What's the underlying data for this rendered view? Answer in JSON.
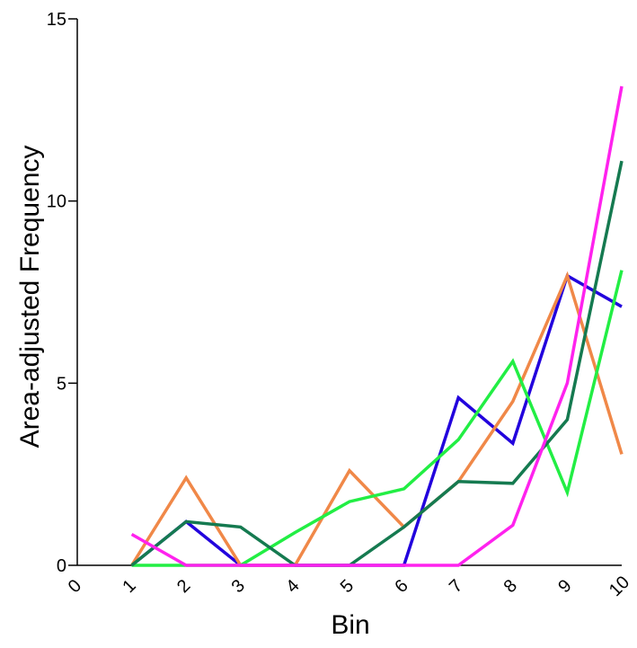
{
  "chart_data": {
    "type": "line",
    "title": "",
    "xlabel": "Bin",
    "ylabel": "Area-adjusted Frequency",
    "xlim": [
      0,
      10
    ],
    "ylim": [
      0,
      15
    ],
    "xticks": [
      "0",
      "1",
      "2",
      "3",
      "4",
      "5",
      "6",
      "7",
      "8",
      "9",
      "10"
    ],
    "yticks": [
      "0",
      "5",
      "10",
      "15"
    ],
    "grid": false,
    "legend": "none",
    "series": [
      {
        "color": "#2200dd",
        "x": [
          1,
          2,
          3,
          4,
          5,
          6,
          7,
          8,
          9,
          10
        ],
        "y": [
          0,
          1.2,
          0,
          0,
          0,
          0,
          4.6,
          3.35,
          7.95,
          7.1
        ]
      },
      {
        "color": "#f08848",
        "x": [
          1,
          2,
          3,
          4,
          5,
          6,
          7,
          8,
          9,
          10
        ],
        "y": [
          0,
          2.4,
          0,
          0,
          2.6,
          1.05,
          2.3,
          4.5,
          7.95,
          3.05
        ]
      },
      {
        "color": "#22ee44",
        "x": [
          1,
          2,
          3,
          4,
          5,
          6,
          7,
          8,
          9,
          10
        ],
        "y": [
          0,
          0,
          0,
          0.9,
          1.75,
          2.1,
          3.45,
          5.6,
          2.0,
          8.1
        ]
      },
      {
        "color": "#157a50",
        "x": [
          1,
          2,
          3,
          4,
          5,
          6,
          7,
          8,
          9,
          10
        ],
        "y": [
          0,
          1.2,
          1.05,
          0,
          0,
          1.05,
          2.3,
          2.25,
          4.0,
          11.1
        ]
      },
      {
        "color": "#ff22ee",
        "x": [
          1,
          2,
          3,
          4,
          5,
          6,
          7,
          8,
          9,
          10
        ],
        "y": [
          0.85,
          0,
          0,
          0,
          0,
          0,
          0,
          1.1,
          5.0,
          13.15
        ]
      }
    ]
  }
}
